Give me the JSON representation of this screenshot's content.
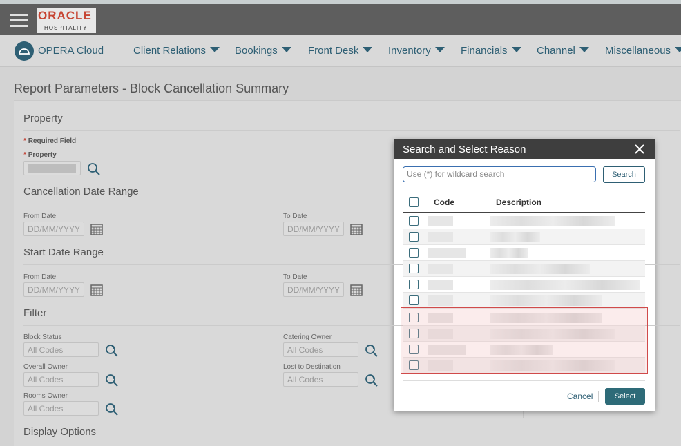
{
  "header": {
    "logo": "ORACLE",
    "logo_sub": "HOSPITALITY"
  },
  "nav": {
    "app": "OPERA Cloud",
    "menus": [
      "Client Relations",
      "Bookings",
      "Front Desk",
      "Inventory",
      "Financials",
      "Channel",
      "Miscellaneous"
    ]
  },
  "page": {
    "title": "Report Parameters - Block Cancellation Summary"
  },
  "form": {
    "property": {
      "heading": "Property",
      "required_marker": "*",
      "required_note": "Required Field",
      "field_label": "Property"
    },
    "cancellation_range": {
      "heading": "Cancellation Date Range",
      "from_label": "From Date",
      "from_placeholder": "DD/MM/YYYY",
      "to_label": "To Date",
      "to_placeholder": "DD/MM/YYYY"
    },
    "start_range": {
      "heading": "Start Date Range",
      "from_label": "From Date",
      "from_placeholder": "DD/MM/YYYY",
      "to_label": "To Date",
      "to_placeholder": "DD/MM/YYYY"
    },
    "filter": {
      "heading": "Filter",
      "fields": [
        {
          "label": "Block Status",
          "value": "All Codes"
        },
        {
          "label": "Catering Owner",
          "value": "All Codes"
        },
        {
          "label": "Overall Owner",
          "value": "All Codes"
        },
        {
          "label": "Lost to Destination",
          "value": "All Codes"
        },
        {
          "label": "Rooms Owner",
          "value": "All Codes"
        }
      ]
    },
    "display_options": {
      "heading": "Display Options"
    }
  },
  "dialog": {
    "title": "Search and Select Reason",
    "search_placeholder": "Use (*) for wildcard search",
    "search_button": "Search",
    "columns": [
      "Code",
      "Description"
    ],
    "cancel": "Cancel",
    "select": "Select"
  }
}
